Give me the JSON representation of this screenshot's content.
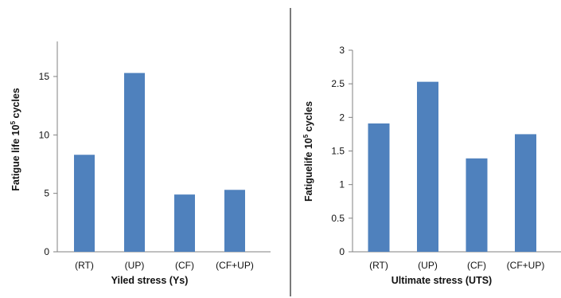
{
  "colors": {
    "bar": "#4f81bd",
    "axis": "#808080",
    "text": "#111111"
  },
  "chart_data": [
    {
      "type": "bar",
      "title": "",
      "categories": [
        "(RT)",
        "(UP)",
        "(CF)",
        "(CF+UP)"
      ],
      "values": [
        8.3,
        15.3,
        4.9,
        5.3
      ],
      "xlabel": "Yiled stress (Ys)",
      "ylabel_prefix": "Fatigue life 10",
      "ylabel_sup": "5",
      "ylabel_suffix": " cycles",
      "ylim": [
        0,
        18
      ],
      "yticks": [
        0,
        5,
        10,
        15
      ],
      "ytick_labels": [
        "0",
        "5",
        "10",
        "15"
      ],
      "grid": false,
      "legend": "none"
    },
    {
      "type": "bar",
      "title": "",
      "categories": [
        "(RT)",
        "(UP)",
        "(CF)",
        "(CF+UP)"
      ],
      "values": [
        1.91,
        2.53,
        1.39,
        1.75
      ],
      "xlabel": "Ultimate stress (UTS)",
      "ylabel_prefix": "Fatiguelife 10",
      "ylabel_sup": "5",
      "ylabel_suffix": " cycles",
      "ylim": [
        0,
        3
      ],
      "yticks": [
        0,
        0.5,
        1,
        1.5,
        2,
        2.5,
        3
      ],
      "ytick_labels": [
        "0",
        "0.5",
        "1",
        "1.5",
        "2",
        "2.5",
        "3"
      ],
      "grid": false,
      "legend": "none"
    }
  ]
}
